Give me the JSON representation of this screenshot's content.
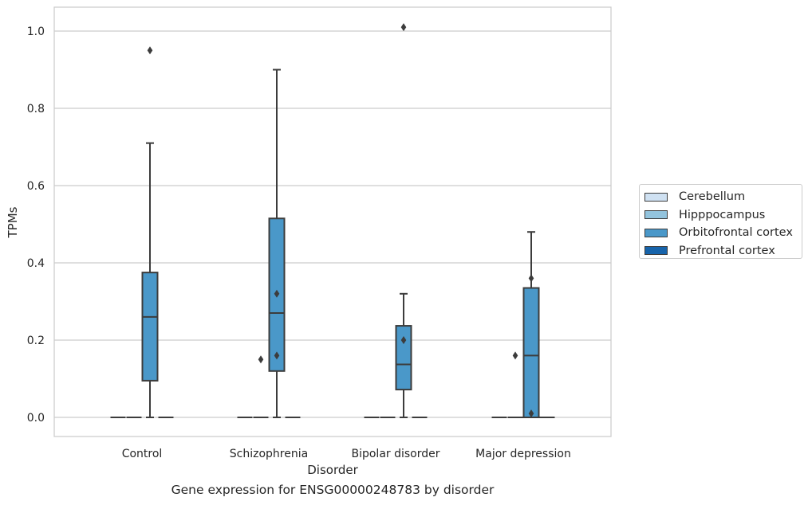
{
  "caption": "Gene expression for ENSG00000248783 by disorder",
  "colors": {
    "Cerebellum": "#cfe1f2",
    "Hipppocampus": "#93c4de",
    "Orbitofrontal cortex": "#4a98c9",
    "Prefrontal cortex": "#1764ab",
    "grid": "#cccccc",
    "line": "#3c3c3c"
  },
  "chart_data": {
    "type": "box",
    "xlabel": "Disorder",
    "ylabel": "TPMs",
    "ylim": [
      -0.05,
      1.06
    ],
    "yticks": [
      "0.0",
      "0.2",
      "0.4",
      "0.6",
      "0.8",
      "1.0"
    ],
    "categories": [
      "Control",
      "Schizophrenia",
      "Bipolar disorder",
      "Major depression"
    ],
    "grid": "horizontal",
    "legend_position": "right",
    "series": [
      {
        "name": "Cerebellum",
        "boxes": [
          {
            "min": 0,
            "q1": 0,
            "median": 0,
            "q3": 0,
            "max": 0,
            "outliers": []
          },
          {
            "min": 0,
            "q1": 0,
            "median": 0,
            "q3": 0,
            "max": 0,
            "outliers": []
          },
          {
            "min": 0,
            "q1": 0,
            "median": 0,
            "q3": 0,
            "max": 0,
            "outliers": []
          },
          {
            "min": 0,
            "q1": 0,
            "median": 0,
            "q3": 0,
            "max": 0,
            "outliers": []
          }
        ]
      },
      {
        "name": "Hipppocampus",
        "boxes": [
          {
            "min": 0,
            "q1": 0,
            "median": 0,
            "q3": 0,
            "max": 0,
            "outliers": []
          },
          {
            "min": 0,
            "q1": 0,
            "median": 0,
            "q3": 0,
            "max": 0,
            "outliers": [
              0.15
            ]
          },
          {
            "min": 0,
            "q1": 0,
            "median": 0,
            "q3": 0,
            "max": 0,
            "outliers": []
          },
          {
            "min": 0,
            "q1": 0,
            "median": 0,
            "q3": 0,
            "max": 0,
            "outliers": [
              0.16
            ]
          }
        ]
      },
      {
        "name": "Orbitofrontal cortex",
        "boxes": [
          {
            "min": 0,
            "q1": 0.095,
            "median": 0.26,
            "q3": 0.375,
            "max": 0.71,
            "outliers": [
              0.95
            ]
          },
          {
            "min": 0,
            "q1": 0.12,
            "median": 0.27,
            "q3": 0.515,
            "max": 0.9,
            "outliers": [
              0.16,
              0.32
            ]
          },
          {
            "min": 0,
            "q1": 0.072,
            "median": 0.137,
            "q3": 0.237,
            "max": 0.32,
            "outliers": [
              1.01,
              0.2
            ]
          },
          {
            "min": 0,
            "q1": 0,
            "median": 0.16,
            "q3": 0.335,
            "max": 0.48,
            "outliers": [
              0.01,
              0.36
            ]
          }
        ]
      },
      {
        "name": "Prefrontal cortex",
        "boxes": [
          {
            "min": 0,
            "q1": 0,
            "median": 0,
            "q3": 0,
            "max": 0,
            "outliers": []
          },
          {
            "min": 0,
            "q1": 0,
            "median": 0,
            "q3": 0,
            "max": 0,
            "outliers": []
          },
          {
            "min": 0,
            "q1": 0,
            "median": 0,
            "q3": 0,
            "max": 0,
            "outliers": []
          },
          {
            "min": 0,
            "q1": 0,
            "median": 0,
            "q3": 0,
            "max": 0,
            "outliers": []
          }
        ]
      }
    ]
  }
}
